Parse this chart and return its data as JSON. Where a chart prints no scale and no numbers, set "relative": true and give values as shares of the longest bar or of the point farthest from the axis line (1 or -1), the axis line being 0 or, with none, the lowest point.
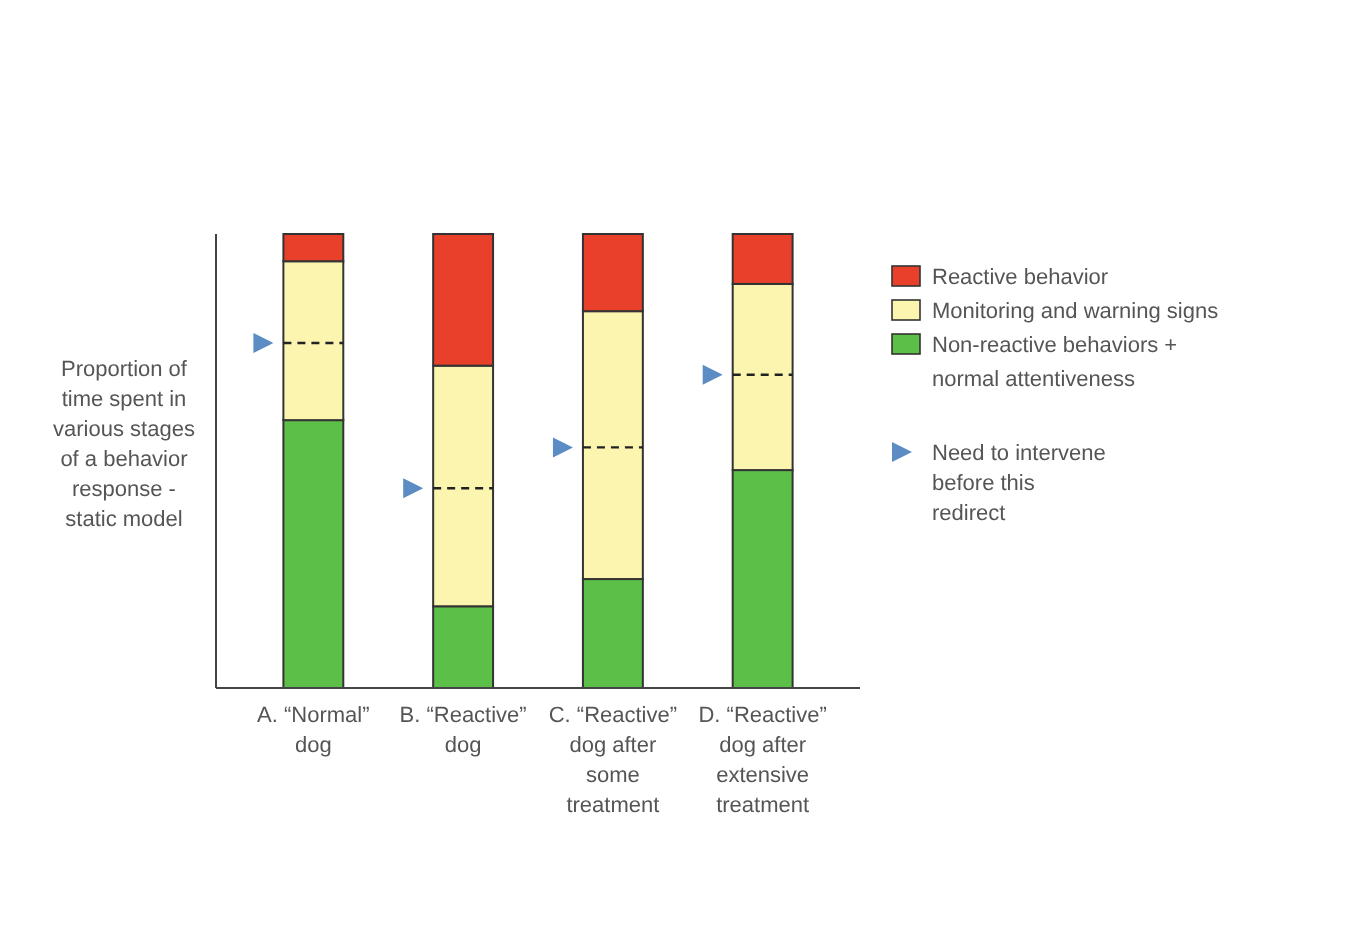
{
  "chart_data": {
    "type": "bar",
    "stacked": true,
    "relative": true,
    "ylabel": "Proportion of time spent in various stages of a behavior response - static model",
    "categories": [
      "A. “Normal” dog",
      "B. “Reactive” dog",
      "C. “Reactive” dog after some treatment",
      "D. “Reactive” dog after extensive treatment"
    ],
    "series": [
      {
        "name": "Non-reactive behaviors + normal attentiveness",
        "color": "#5cbf48",
        "values": [
          0.59,
          0.18,
          0.24,
          0.48
        ]
      },
      {
        "name": "Monitoring and warning signs",
        "color": "#fbf5b0",
        "values": [
          0.35,
          0.53,
          0.59,
          0.41
        ]
      },
      {
        "name": "Reactive behavior",
        "color": "#e8402a",
        "values": [
          0.06,
          0.29,
          0.17,
          0.11
        ]
      }
    ],
    "ref_lines": [
      {
        "axis": "y",
        "value": 0.76,
        "color": "#222222",
        "line_style": "dashed"
      },
      {
        "axis": "y",
        "value": 0.44,
        "color": "#222222",
        "line_style": "dashed"
      },
      {
        "axis": "y",
        "value": 0.53,
        "color": "#222222",
        "line_style": "dashed"
      },
      {
        "axis": "y",
        "value": 0.69,
        "color": "#222222",
        "line_style": "dashed"
      }
    ],
    "annotations": [
      "Need to intervene before this redirect"
    ],
    "legend": "right"
  }
}
